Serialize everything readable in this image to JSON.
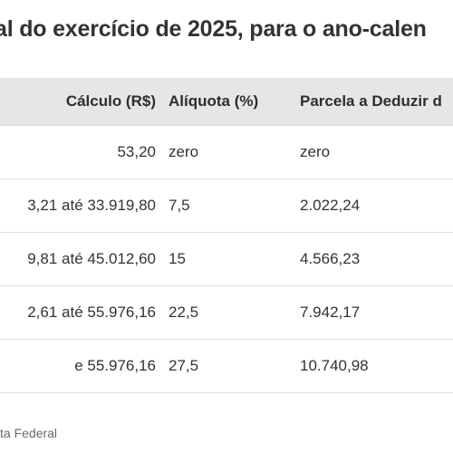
{
  "title": "al do exercício de 2025, para o ano-calen",
  "table": {
    "headers": [
      "Cálculo (R$)",
      "Alíquota (%)",
      "Parcela a Deduzir d"
    ],
    "rows": [
      [
        "53,20",
        "zero",
        "zero"
      ],
      [
        "3,21 até 33.919,80",
        "7,5",
        "2.022,24"
      ],
      [
        "9,81 até 45.012,60",
        "15",
        "4.566,23"
      ],
      [
        "2,61 até 55.976,16",
        "22,5",
        "7.942,17"
      ],
      [
        "e 55.976,16",
        "27,5",
        "10.740,98"
      ]
    ]
  },
  "source": "ta Federal"
}
